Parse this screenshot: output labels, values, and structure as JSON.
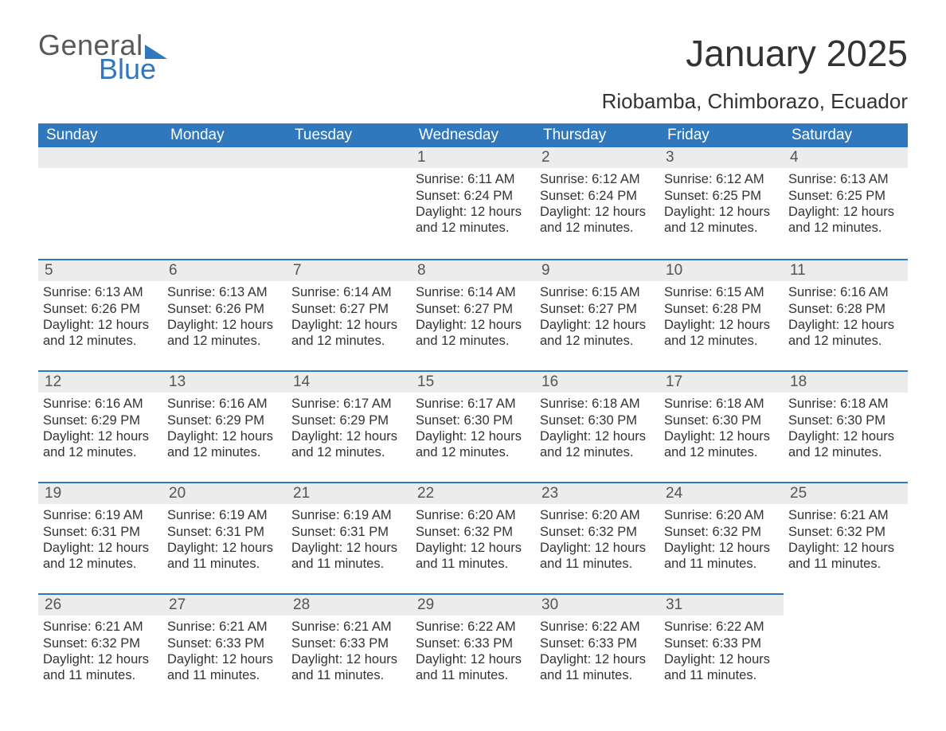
{
  "logo": {
    "line1": "General",
    "line2": "Blue",
    "accent_color": "#2f78bd",
    "text_color": "#595959"
  },
  "header": {
    "month_title": "January 2025",
    "location": "Riobamba, Chimborazo, Ecuador"
  },
  "calendar": {
    "day_labels": [
      "Sunday",
      "Monday",
      "Tuesday",
      "Wednesday",
      "Thursday",
      "Friday",
      "Saturday"
    ],
    "header_bg": "#2f78bd",
    "header_fg": "#ffffff",
    "daybar_bg": "#ececec",
    "daybar_border": "#2f78bd",
    "text_color": "#333333",
    "weeks": [
      [
        null,
        null,
        null,
        {
          "n": "1",
          "sunrise": "6:11 AM",
          "sunset": "6:24 PM",
          "daylight": "12 hours and 12 minutes."
        },
        {
          "n": "2",
          "sunrise": "6:12 AM",
          "sunset": "6:24 PM",
          "daylight": "12 hours and 12 minutes."
        },
        {
          "n": "3",
          "sunrise": "6:12 AM",
          "sunset": "6:25 PM",
          "daylight": "12 hours and 12 minutes."
        },
        {
          "n": "4",
          "sunrise": "6:13 AM",
          "sunset": "6:25 PM",
          "daylight": "12 hours and 12 minutes."
        }
      ],
      [
        {
          "n": "5",
          "sunrise": "6:13 AM",
          "sunset": "6:26 PM",
          "daylight": "12 hours and 12 minutes."
        },
        {
          "n": "6",
          "sunrise": "6:13 AM",
          "sunset": "6:26 PM",
          "daylight": "12 hours and 12 minutes."
        },
        {
          "n": "7",
          "sunrise": "6:14 AM",
          "sunset": "6:27 PM",
          "daylight": "12 hours and 12 minutes."
        },
        {
          "n": "8",
          "sunrise": "6:14 AM",
          "sunset": "6:27 PM",
          "daylight": "12 hours and 12 minutes."
        },
        {
          "n": "9",
          "sunrise": "6:15 AM",
          "sunset": "6:27 PM",
          "daylight": "12 hours and 12 minutes."
        },
        {
          "n": "10",
          "sunrise": "6:15 AM",
          "sunset": "6:28 PM",
          "daylight": "12 hours and 12 minutes."
        },
        {
          "n": "11",
          "sunrise": "6:16 AM",
          "sunset": "6:28 PM",
          "daylight": "12 hours and 12 minutes."
        }
      ],
      [
        {
          "n": "12",
          "sunrise": "6:16 AM",
          "sunset": "6:29 PM",
          "daylight": "12 hours and 12 minutes."
        },
        {
          "n": "13",
          "sunrise": "6:16 AM",
          "sunset": "6:29 PM",
          "daylight": "12 hours and 12 minutes."
        },
        {
          "n": "14",
          "sunrise": "6:17 AM",
          "sunset": "6:29 PM",
          "daylight": "12 hours and 12 minutes."
        },
        {
          "n": "15",
          "sunrise": "6:17 AM",
          "sunset": "6:30 PM",
          "daylight": "12 hours and 12 minutes."
        },
        {
          "n": "16",
          "sunrise": "6:18 AM",
          "sunset": "6:30 PM",
          "daylight": "12 hours and 12 minutes."
        },
        {
          "n": "17",
          "sunrise": "6:18 AM",
          "sunset": "6:30 PM",
          "daylight": "12 hours and 12 minutes."
        },
        {
          "n": "18",
          "sunrise": "6:18 AM",
          "sunset": "6:30 PM",
          "daylight": "12 hours and 12 minutes."
        }
      ],
      [
        {
          "n": "19",
          "sunrise": "6:19 AM",
          "sunset": "6:31 PM",
          "daylight": "12 hours and 12 minutes."
        },
        {
          "n": "20",
          "sunrise": "6:19 AM",
          "sunset": "6:31 PM",
          "daylight": "12 hours and 11 minutes."
        },
        {
          "n": "21",
          "sunrise": "6:19 AM",
          "sunset": "6:31 PM",
          "daylight": "12 hours and 11 minutes."
        },
        {
          "n": "22",
          "sunrise": "6:20 AM",
          "sunset": "6:32 PM",
          "daylight": "12 hours and 11 minutes."
        },
        {
          "n": "23",
          "sunrise": "6:20 AM",
          "sunset": "6:32 PM",
          "daylight": "12 hours and 11 minutes."
        },
        {
          "n": "24",
          "sunrise": "6:20 AM",
          "sunset": "6:32 PM",
          "daylight": "12 hours and 11 minutes."
        },
        {
          "n": "25",
          "sunrise": "6:21 AM",
          "sunset": "6:32 PM",
          "daylight": "12 hours and 11 minutes."
        }
      ],
      [
        {
          "n": "26",
          "sunrise": "6:21 AM",
          "sunset": "6:32 PM",
          "daylight": "12 hours and 11 minutes."
        },
        {
          "n": "27",
          "sunrise": "6:21 AM",
          "sunset": "6:33 PM",
          "daylight": "12 hours and 11 minutes."
        },
        {
          "n": "28",
          "sunrise": "6:21 AM",
          "sunset": "6:33 PM",
          "daylight": "12 hours and 11 minutes."
        },
        {
          "n": "29",
          "sunrise": "6:22 AM",
          "sunset": "6:33 PM",
          "daylight": "12 hours and 11 minutes."
        },
        {
          "n": "30",
          "sunrise": "6:22 AM",
          "sunset": "6:33 PM",
          "daylight": "12 hours and 11 minutes."
        },
        {
          "n": "31",
          "sunrise": "6:22 AM",
          "sunset": "6:33 PM",
          "daylight": "12 hours and 11 minutes."
        },
        null
      ]
    ],
    "labels": {
      "sunrise": "Sunrise: ",
      "sunset": "Sunset: ",
      "daylight": "Daylight: "
    }
  }
}
